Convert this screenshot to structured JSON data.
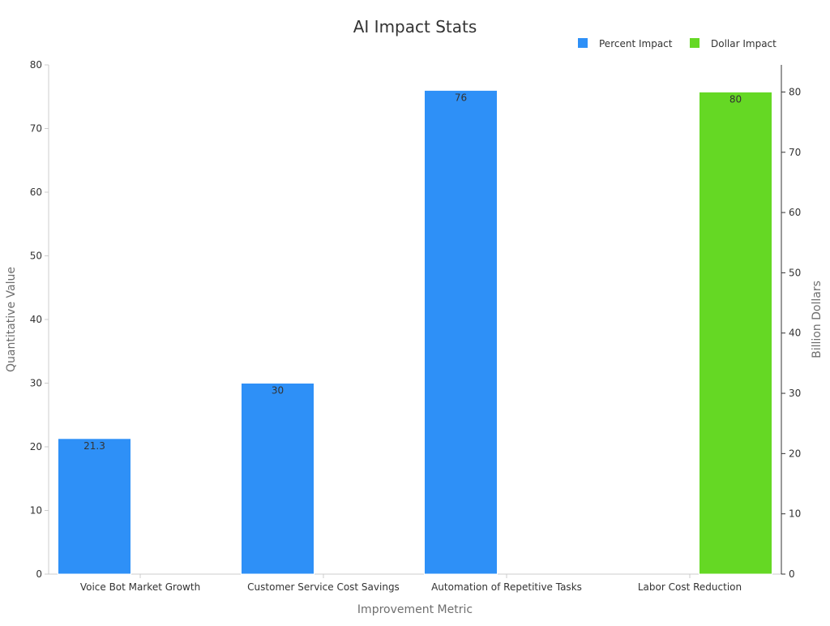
{
  "chart_data": {
    "type": "bar",
    "title": "AI Impact Stats",
    "xlabel": "Improvement Metric",
    "ylabel": "Quantitative Value",
    "y2label": "Billion Dollars",
    "categories": [
      "Voice Bot Market Growth",
      "Customer Service Cost Savings",
      "Automation of Repetitive Tasks",
      "Labor Cost Reduction"
    ],
    "series": [
      {
        "name": "Percent Impact",
        "axis": "left",
        "color": "#2e90f7",
        "values": [
          21.3,
          30,
          76,
          null
        ],
        "labels": [
          "21.3",
          "30",
          "76",
          ""
        ]
      },
      {
        "name": "Dollar Impact",
        "axis": "right",
        "color": "#65d824",
        "values": [
          null,
          null,
          null,
          80
        ],
        "labels": [
          "",
          "",
          "",
          "80"
        ]
      }
    ],
    "ylim": [
      0,
      80
    ],
    "y2lim": [
      0,
      84.5
    ],
    "yticks": [
      "0",
      "10",
      "20",
      "30",
      "40",
      "50",
      "60",
      "70",
      "80"
    ],
    "y2ticks": [
      "0",
      "10",
      "20",
      "30",
      "40",
      "50",
      "60",
      "70",
      "80"
    ],
    "legend": "top-right",
    "grid": false
  }
}
